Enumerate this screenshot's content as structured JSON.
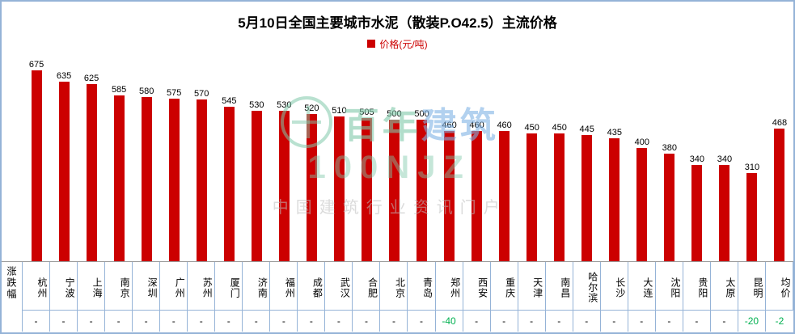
{
  "title": "5月10日全国主要城市水泥（散装P.O42.5）主流价格",
  "legend": {
    "label": "价格(元/吨)",
    "color": "#cc0000"
  },
  "row_label": "涨跌幅",
  "watermark": {
    "brand_green": "百年",
    "brand_blue": "建筑",
    "code": "100NJZ",
    "slogan": "中国建筑行业资讯门户"
  },
  "chart_data": {
    "type": "bar",
    "title": "5月10日全国主要城市水泥（散装P.O42.5）主流价格",
    "ylabel": "价格(元/吨)",
    "ylim": [
      0,
      700
    ],
    "bar_color": "#cc0000",
    "legend_position": "top",
    "grid": false,
    "categories": [
      "杭州",
      "宁波",
      "上海",
      "南京",
      "深圳",
      "广州",
      "苏州",
      "厦门",
      "济南",
      "福州",
      "成都",
      "武汉",
      "合肥",
      "北京",
      "青岛",
      "郑州",
      "西安",
      "重庆",
      "天津",
      "南昌",
      "哈尔滨",
      "长沙",
      "大连",
      "沈阳",
      "贵阳",
      "太原",
      "昆明",
      "均价"
    ],
    "values": [
      675,
      635,
      625,
      585,
      580,
      575,
      570,
      545,
      530,
      530,
      520,
      510,
      505,
      500,
      500,
      460,
      460,
      460,
      450,
      450,
      445,
      435,
      400,
      380,
      340,
      340,
      310,
      468
    ],
    "changes": [
      "-",
      "-",
      "-",
      "-",
      "-",
      "-",
      "-",
      "-",
      "-",
      "-",
      "-",
      "-",
      "-",
      "-",
      "-",
      "-40",
      "-",
      "-",
      "-",
      "-",
      "-",
      "-",
      "-",
      "-",
      "-",
      "-",
      "-20",
      "-2"
    ]
  }
}
